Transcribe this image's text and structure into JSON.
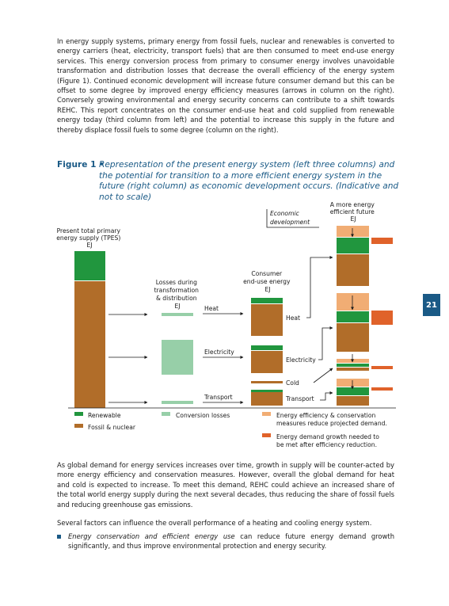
{
  "intro_paragraph": "In energy supply systems, primary energy from fossil fuels, nuclear and renewables is converted to energy carriers (heat, electricity, transport fuels) that are then consumed to meet end-use energy services. This energy conversion process from primary to consumer energy involves unavoidable transformation and distribution losses that decrease the overall efficiency of the energy system (Figure 1). Continued economic development will increase future consumer demand but this can be offset to some degree by improved energy efficiency measures (arrows in column on the right). Conversely growing environmental and energy security concerns can contribute to a shift towards REHC. This report concentrates on the consumer end-use heat and cold supplied from renewable energy today (third column from left) and the potential to increase this supply in the future and thereby displace fossil fuels to some degree (column on the right).",
  "figure": {
    "label": "Figure 1 •",
    "caption": "Representation of the present energy system (left three columns) and the potential for transition to a more efficient energy system in the future (right column) as economic development occurs. (Indicative and not to scale)",
    "col1_header": [
      "Present total primary",
      "energy supply (TPES)",
      "EJ"
    ],
    "col2_header": [
      "Losses during",
      "transformation",
      "& distribution",
      "EJ"
    ],
    "col3_header": [
      "Consumer",
      "end-use energy",
      "EJ"
    ],
    "col4_header": [
      "A more energy",
      "efficient future",
      "EJ"
    ],
    "econ_label": [
      "Economic",
      "development"
    ],
    "carriers": {
      "heat": "Heat",
      "electricity": "Electricity",
      "transport": "Transport"
    },
    "consumer_labels": {
      "heat": "Heat",
      "electricity": "Electricity",
      "cold": "Cold",
      "transport": "Transport"
    },
    "legend": {
      "renewable": "Renewable",
      "fossil": "Fossil & nuclear",
      "losses": "Conversion losses",
      "efficiency": [
        "Energy efficiency & conservation",
        "measures reduce projected demand."
      ],
      "growth": [
        "Energy demand growth needed to",
        "be met after efficiency reduction."
      ]
    },
    "colors": {
      "renewable": "#21963e",
      "fossil": "#b16d29",
      "losses": "#97cfa8",
      "efficiency": "#f1ad74",
      "growth": "#e0622a",
      "accent": "#1a5a86"
    }
  },
  "paragraph_2": "As global demand for energy services increases over time, growth in supply will be counter-acted by more energy efficiency and conservation measures. However, overall the global demand for heat and cold is expected to increase. To meet this demand, REHC could achieve an increased share of the total world energy supply during the next several decades, thus reducing the share of fossil fuels and reducing greenhouse gas emissions.",
  "paragraph_3": "Several factors can influence the overall performance of a heating and cooling energy system.",
  "bullet": {
    "emphasis": "Energy conservation and efficient energy use",
    "rest": " can reduce future energy demand growth significantly, and thus improve environmental protection and energy security."
  },
  "page_number": "21"
}
